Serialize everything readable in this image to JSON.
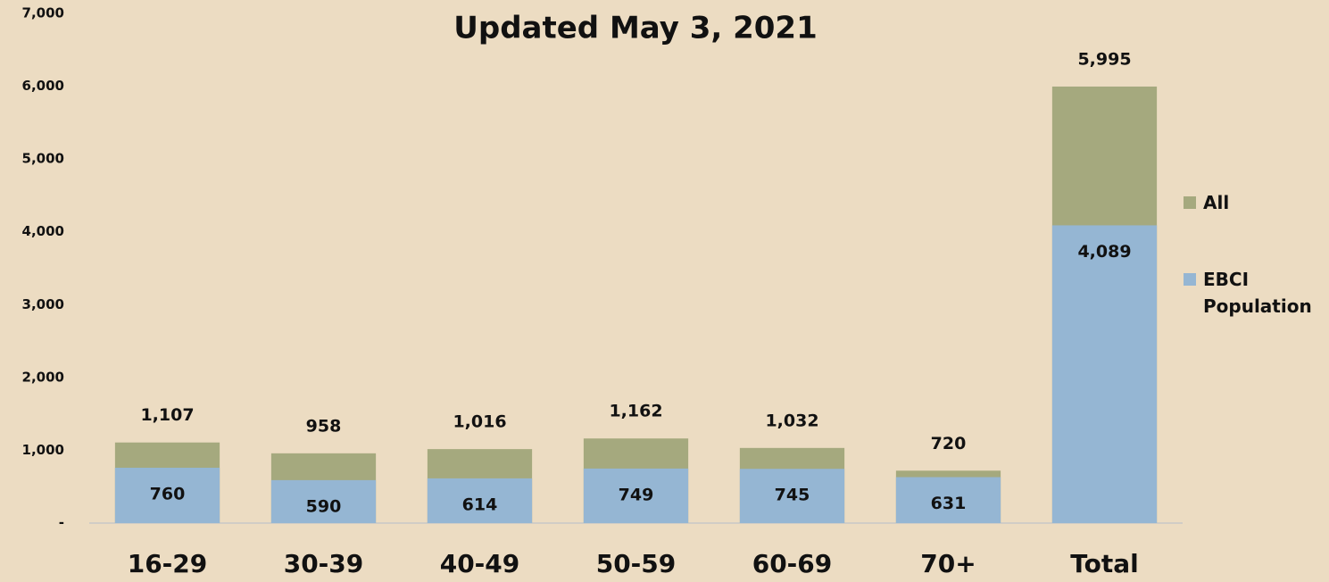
{
  "chart_data": {
    "type": "bar",
    "title": "Updated May 3, 2021",
    "categories": [
      "16-29",
      "30-39",
      "40-49",
      "50-59",
      "60-69",
      "70+",
      "Total"
    ],
    "series": [
      {
        "name": "All",
        "color": "#a5a97e",
        "values": [
          1107,
          958,
          1016,
          1162,
          1032,
          720,
          5995
        ],
        "value_labels": [
          "1,107",
          "958",
          "1,016",
          "1,162",
          "1,032",
          "720",
          "5,995"
        ]
      },
      {
        "name": "EBCI Population",
        "color": "#95b6d3",
        "values": [
          760,
          590,
          614,
          749,
          745,
          631,
          4089
        ],
        "value_labels": [
          "760",
          "590",
          "614",
          "749",
          "745",
          "631",
          "4,089"
        ]
      }
    ],
    "ylim": [
      0,
      7000
    ],
    "yticks": [
      {
        "value": 0,
        "label": "-"
      },
      {
        "value": 1000,
        "label": "1,000"
      },
      {
        "value": 2000,
        "label": "2,000"
      },
      {
        "value": 3000,
        "label": "3,000"
      },
      {
        "value": 4000,
        "label": "4,000"
      },
      {
        "value": 5000,
        "label": "5,000"
      },
      {
        "value": 6000,
        "label": "6,000"
      },
      {
        "value": 7000,
        "label": "7,000"
      }
    ],
    "legend": "right",
    "grid": false
  }
}
